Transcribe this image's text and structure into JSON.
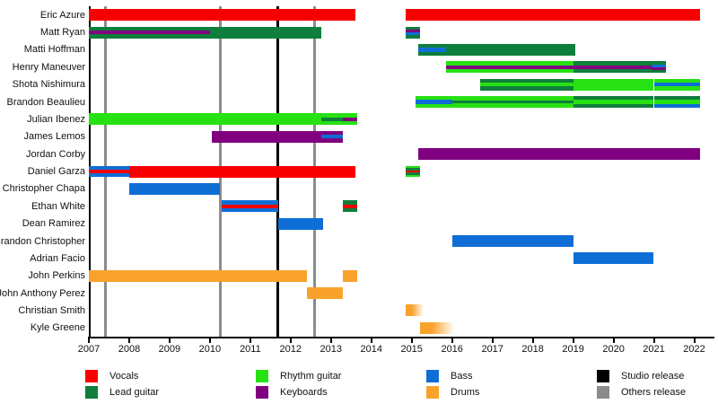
{
  "chart_data": {
    "type": "bar",
    "variant": "band-members-timeline",
    "title": "",
    "xlabel": "",
    "ylabel": "",
    "grid": false,
    "x_axis": {
      "min": 2007,
      "max": 2022.5,
      "ticks": [
        2007,
        2008,
        2009,
        2010,
        2011,
        2012,
        2013,
        2014,
        2015,
        2016,
        2017,
        2018,
        2019,
        2020,
        2021,
        2022
      ]
    },
    "colors": {
      "vocals": "#f80000",
      "lead": "#0e7e3c",
      "rhythm": "#27e112",
      "keyboards": "#800080",
      "bass": "#0e6ed6",
      "drums": "#f9a22b",
      "studio": "#000000",
      "others": "#8c8c8c"
    },
    "members": [
      {
        "name": "Eric Azure",
        "segments": [
          {
            "start": 2007.0,
            "end": 2013.6,
            "stripes": [
              "vocals"
            ]
          },
          {
            "start": 2014.85,
            "end": 2022.15,
            "stripes": [
              "vocals"
            ]
          }
        ]
      },
      {
        "name": "Matt Ryan",
        "segments": [
          {
            "start": 2007.0,
            "end": 2010.0,
            "stripes": [
              "lead",
              "keyboards",
              "lead"
            ]
          },
          {
            "start": 2010.0,
            "end": 2012.75,
            "stripes": [
              "lead"
            ]
          },
          {
            "start": 2014.85,
            "end": 2015.2,
            "stripes": [
              "lead",
              "keyboards",
              "bass",
              "lead"
            ]
          }
        ]
      },
      {
        "name": "Matti Hoffman",
        "segments": [
          {
            "start": 2015.15,
            "end": 2015.85,
            "stripes": [
              "lead",
              "bass",
              "lead"
            ]
          },
          {
            "start": 2015.85,
            "end": 2019.05,
            "stripes": [
              "lead"
            ]
          }
        ]
      },
      {
        "name": "Henry Maneuver",
        "segments": [
          {
            "start": 2015.85,
            "end": 2019.0,
            "stripes": [
              "rhythm",
              "keyboards",
              "rhythm"
            ]
          },
          {
            "start": 2019.0,
            "end": 2020.95,
            "stripes": [
              "lead",
              "keyboards",
              "lead"
            ]
          },
          {
            "start": 2020.95,
            "end": 2021.3,
            "stripes": [
              "lead",
              "bass",
              "keyboards",
              "lead"
            ]
          }
        ]
      },
      {
        "name": "Shota Nishimura",
        "segments": [
          {
            "start": 2016.7,
            "end": 2019.0,
            "stripes": [
              "lead",
              "rhythm",
              "lead"
            ]
          },
          {
            "start": 2019.0,
            "end": 2021.0,
            "stripes": [
              "rhythm"
            ]
          },
          {
            "start": 2021.0,
            "end": 2022.15,
            "stripes": [
              "rhythm",
              "bass",
              "rhythm"
            ]
          }
        ]
      },
      {
        "name": "Brandon Beaulieu",
        "segments": [
          {
            "start": 2015.1,
            "end": 2016.0,
            "stripes": [
              "rhythm",
              "bass",
              "rhythm"
            ]
          },
          {
            "start": 2016.0,
            "end": 2019.0,
            "stripes": [
              "rhythm",
              "rhythm",
              "lead",
              "rhythm",
              "rhythm"
            ]
          },
          {
            "start": 2019.0,
            "end": 2021.0,
            "stripes": [
              "lead",
              "rhythm",
              "lead"
            ]
          },
          {
            "start": 2021.0,
            "end": 2022.15,
            "stripes": [
              "lead",
              "rhythm",
              "bass"
            ]
          }
        ]
      },
      {
        "name": "Julian Ibenez",
        "segments": [
          {
            "start": 2007.0,
            "end": 2012.75,
            "stripes": [
              "rhythm"
            ]
          },
          {
            "start": 2012.75,
            "end": 2013.3,
            "stripes": [
              "rhythm",
              "lead",
              "rhythm"
            ]
          },
          {
            "start": 2013.3,
            "end": 2013.65,
            "stripes": [
              "rhythm",
              "keyboards",
              "rhythm"
            ]
          }
        ]
      },
      {
        "name": "James Lemos",
        "segments": [
          {
            "start": 2010.05,
            "end": 2012.75,
            "stripes": [
              "keyboards"
            ]
          },
          {
            "start": 2012.75,
            "end": 2013.3,
            "stripes": [
              "keyboards",
              "bass",
              "keyboards"
            ]
          }
        ]
      },
      {
        "name": "Jordan Corby",
        "segments": [
          {
            "start": 2015.15,
            "end": 2022.15,
            "stripes": [
              "keyboards"
            ]
          }
        ]
      },
      {
        "name": "Daniel Garza",
        "segments": [
          {
            "start": 2007.0,
            "end": 2008.0,
            "stripes": [
              "bass",
              "vocals",
              "bass"
            ]
          },
          {
            "start": 2008.0,
            "end": 2013.6,
            "stripes": [
              "vocals"
            ]
          },
          {
            "start": 2014.85,
            "end": 2015.2,
            "stripes": [
              "rhythm",
              "lead",
              "vocals",
              "lead",
              "rhythm"
            ]
          }
        ]
      },
      {
        "name": "Christopher Chapa",
        "segments": [
          {
            "start": 2008.0,
            "end": 2010.25,
            "stripes": [
              "bass"
            ]
          }
        ]
      },
      {
        "name": "Ethan White",
        "segments": [
          {
            "start": 2010.3,
            "end": 2011.7,
            "stripes": [
              "bass",
              "vocals",
              "bass"
            ]
          },
          {
            "start": 2013.3,
            "end": 2013.65,
            "stripes": [
              "lead",
              "vocals",
              "lead"
            ]
          }
        ]
      },
      {
        "name": "Dean Ramirez",
        "segments": [
          {
            "start": 2011.7,
            "end": 2012.8,
            "stripes": [
              "bass"
            ]
          }
        ]
      },
      {
        "name": "Brandon Christopher",
        "segments": [
          {
            "start": 2016.0,
            "end": 2019.0,
            "stripes": [
              "bass"
            ]
          }
        ]
      },
      {
        "name": "Adrian Facio",
        "segments": [
          {
            "start": 2019.0,
            "end": 2021.0,
            "stripes": [
              "bass"
            ]
          }
        ]
      },
      {
        "name": "John Perkins",
        "segments": [
          {
            "start": 2007.0,
            "end": 2012.4,
            "stripes": [
              "drums"
            ]
          },
          {
            "start": 2013.3,
            "end": 2013.65,
            "stripes": [
              "drums"
            ]
          }
        ]
      },
      {
        "name": "John Anthony Perez",
        "segments": [
          {
            "start": 2012.4,
            "end": 2013.3,
            "stripes": [
              "drums"
            ]
          }
        ]
      },
      {
        "name": "Christian Smith",
        "segments": [
          {
            "start": 2014.85,
            "end": 2015.3,
            "stripes": [
              "drums"
            ],
            "fade": true
          }
        ]
      },
      {
        "name": "Kyle Greene",
        "segments": [
          {
            "start": 2015.2,
            "end": 2016.05,
            "stripes": [
              "drums"
            ],
            "fade": true
          }
        ]
      }
    ],
    "releases": [
      {
        "year": 2007.42,
        "type": "others"
      },
      {
        "year": 2010.25,
        "type": "others"
      },
      {
        "year": 2011.67,
        "type": "studio"
      },
      {
        "year": 2012.6,
        "type": "others"
      }
    ],
    "legend": {
      "position": "bottom",
      "columns": [
        [
          {
            "label": "Vocals",
            "key": "vocals"
          },
          {
            "label": "Lead guitar",
            "key": "lead"
          }
        ],
        [
          {
            "label": "Rhythm guitar",
            "key": "rhythm"
          },
          {
            "label": "Keyboards",
            "key": "keyboards"
          }
        ],
        [
          {
            "label": "Bass",
            "key": "bass"
          },
          {
            "label": "Drums",
            "key": "drums"
          }
        ],
        [
          {
            "label": "Studio release",
            "key": "studio"
          },
          {
            "label": "Others release",
            "key": "others"
          }
        ]
      ]
    }
  }
}
